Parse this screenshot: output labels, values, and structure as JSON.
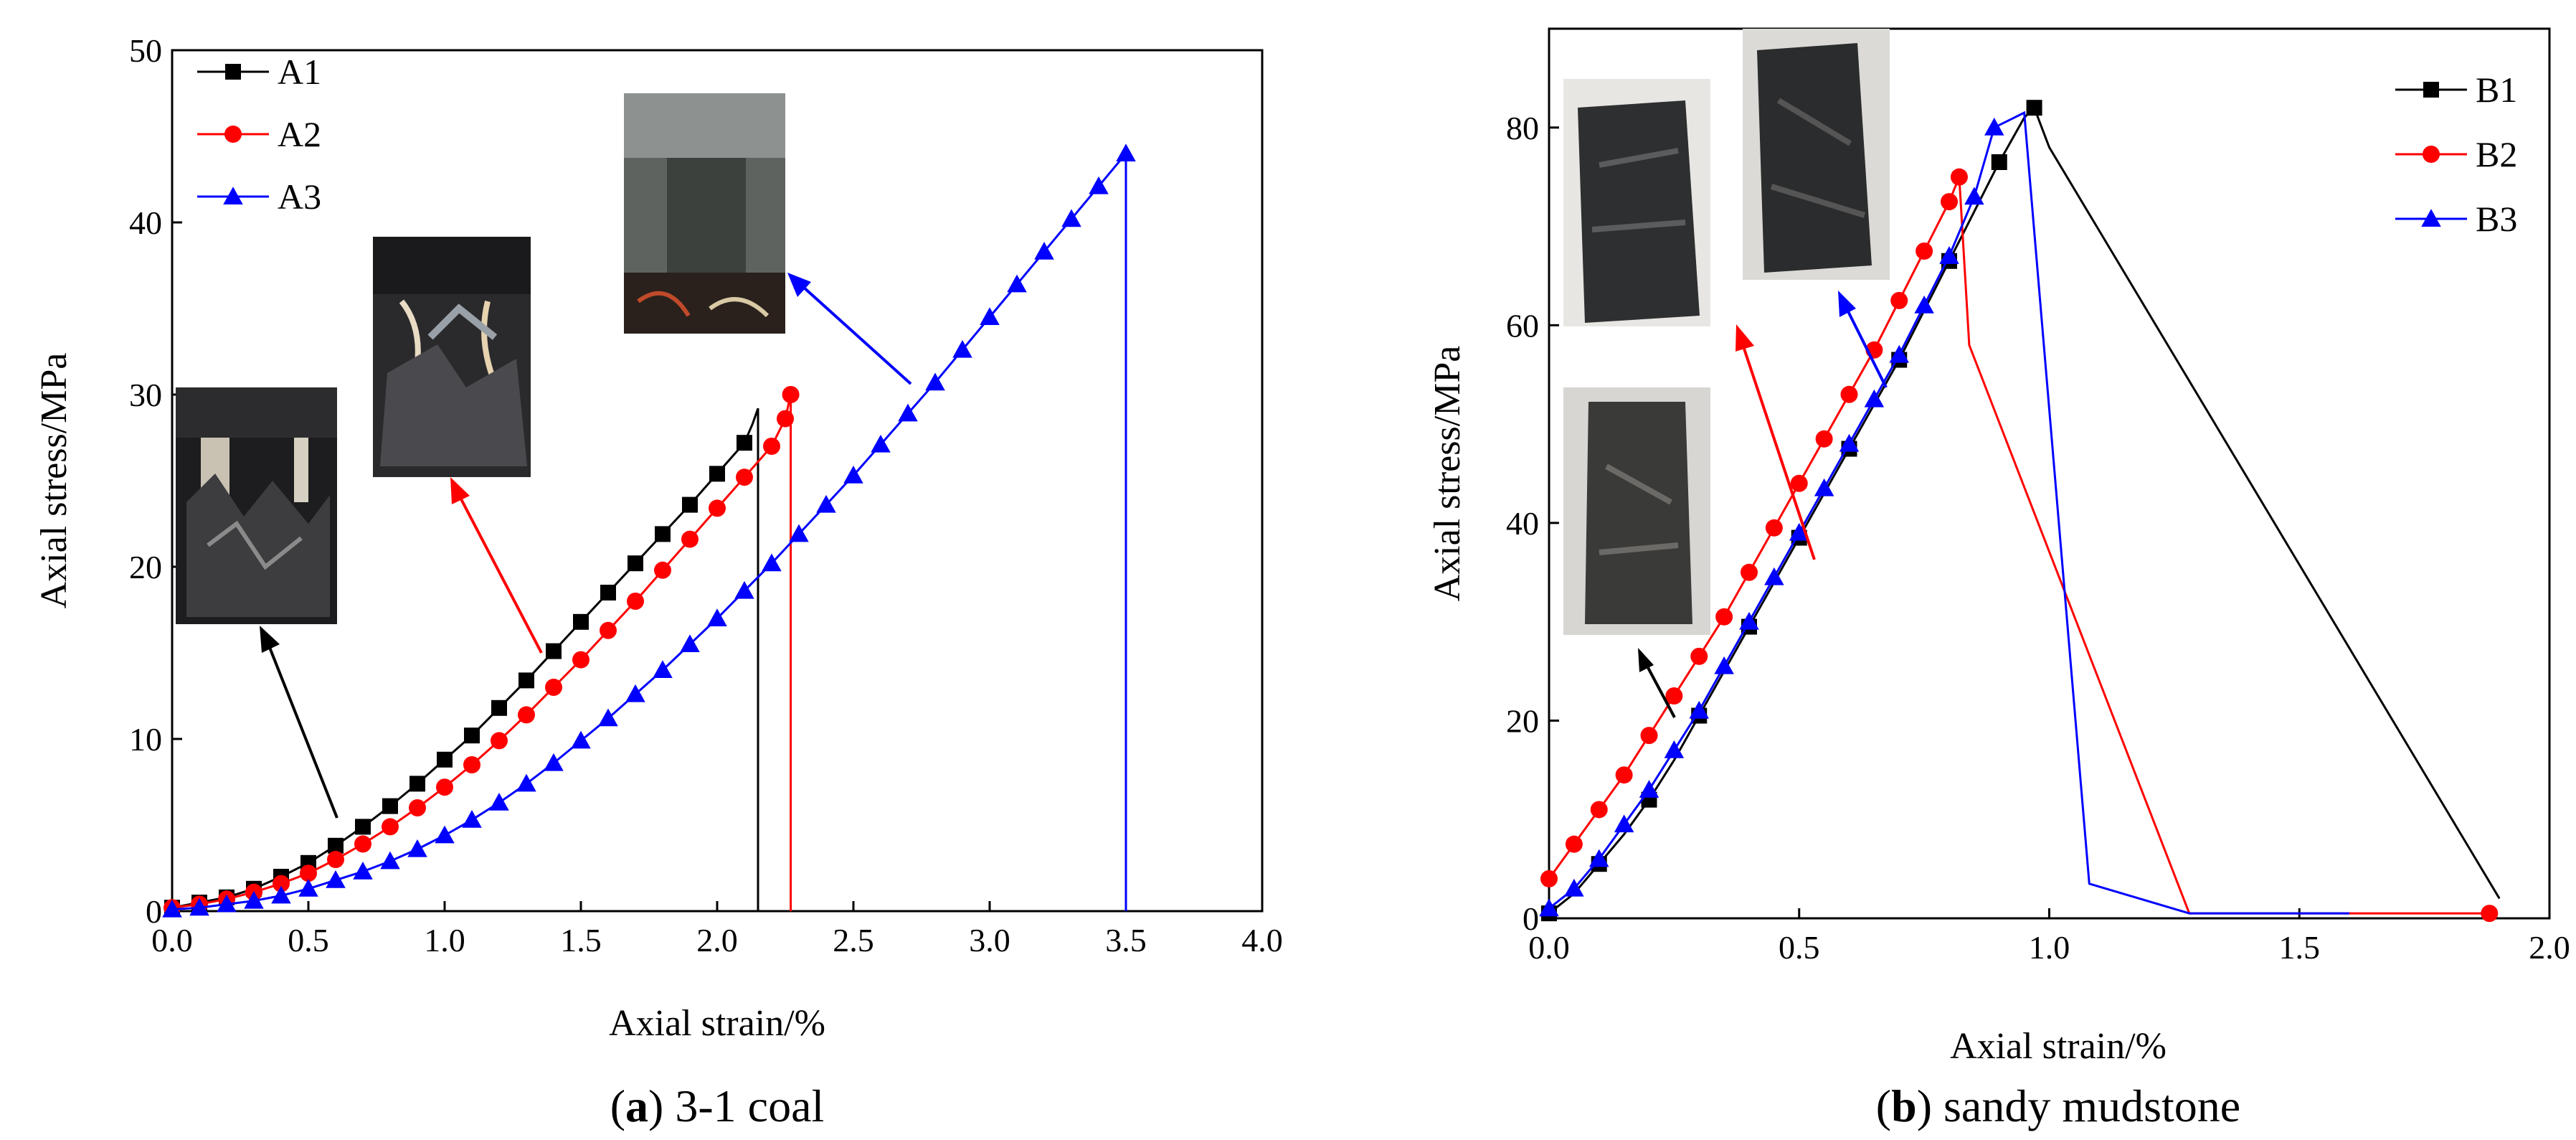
{
  "chart_data": [
    {
      "type": "line",
      "caption_letter": "a",
      "caption_text": ") 3-1 coal",
      "xlabel": "Axial strain/%",
      "ylabel": "Axial stress/MPa",
      "xlim": [
        0,
        4.0
      ],
      "ylim": [
        0,
        50
      ],
      "xticks": [
        "0.0",
        "0.5",
        "1.0",
        "1.5",
        "2.0",
        "2.5",
        "3.0",
        "3.5",
        "4.0"
      ],
      "yticks": [
        "0",
        "10",
        "20",
        "30",
        "40",
        "50"
      ],
      "legend_position": "top-left",
      "series": [
        {
          "name": "A1",
          "color": "#000000",
          "marker": "square",
          "x": [
            0,
            0.1,
            0.2,
            0.3,
            0.4,
            0.5,
            0.6,
            0.7,
            0.8,
            0.9,
            1.0,
            1.1,
            1.2,
            1.3,
            1.4,
            1.5,
            1.6,
            1.7,
            1.8,
            1.9,
            2.0,
            2.1,
            2.13,
            2.15,
            2.15
          ],
          "y": [
            0.2,
            0.5,
            0.8,
            1.3,
            2.0,
            2.8,
            3.8,
            4.9,
            6.1,
            7.4,
            8.8,
            10.2,
            11.8,
            13.4,
            15.1,
            16.8,
            18.5,
            20.2,
            21.9,
            23.6,
            25.4,
            27.2,
            28.3,
            29.2,
            0
          ],
          "marked": [
            0,
            1,
            2,
            3,
            4,
            5,
            6,
            7,
            8,
            9,
            10,
            11,
            12,
            13,
            14,
            15,
            16,
            17,
            18,
            19,
            20,
            21
          ]
        },
        {
          "name": "A2",
          "color": "#ff0000",
          "marker": "circle",
          "x": [
            0,
            0.1,
            0.2,
            0.3,
            0.4,
            0.5,
            0.6,
            0.7,
            0.8,
            0.9,
            1.0,
            1.1,
            1.2,
            1.3,
            1.4,
            1.5,
            1.6,
            1.7,
            1.8,
            1.9,
            2.0,
            2.1,
            2.2,
            2.25,
            2.27,
            2.27
          ],
          "y": [
            0.2,
            0.4,
            0.7,
            1.1,
            1.6,
            2.2,
            3.0,
            3.9,
            4.9,
            6.0,
            7.2,
            8.5,
            9.9,
            11.4,
            13.0,
            14.6,
            16.3,
            18.0,
            19.8,
            21.6,
            23.4,
            25.2,
            27.0,
            28.6,
            30.0,
            0
          ],
          "marked": [
            0,
            1,
            2,
            3,
            4,
            5,
            6,
            7,
            8,
            9,
            10,
            11,
            12,
            13,
            14,
            15,
            16,
            17,
            18,
            19,
            20,
            21,
            22,
            23,
            24
          ]
        },
        {
          "name": "A3",
          "color": "#0000ff",
          "marker": "triangle",
          "x": [
            0,
            0.1,
            0.2,
            0.3,
            0.4,
            0.5,
            0.6,
            0.7,
            0.8,
            0.9,
            1.0,
            1.1,
            1.2,
            1.3,
            1.4,
            1.5,
            1.6,
            1.7,
            1.8,
            1.9,
            2.0,
            2.1,
            2.2,
            2.3,
            2.4,
            2.5,
            2.6,
            2.7,
            2.8,
            2.9,
            3.0,
            3.1,
            3.2,
            3.3,
            3.4,
            3.5,
            3.5
          ],
          "y": [
            0.1,
            0.2,
            0.4,
            0.6,
            0.9,
            1.3,
            1.8,
            2.3,
            2.9,
            3.6,
            4.4,
            5.3,
            6.3,
            7.4,
            8.6,
            9.9,
            11.2,
            12.6,
            14.0,
            15.5,
            17.0,
            18.6,
            20.2,
            21.9,
            23.6,
            25.3,
            27.1,
            28.9,
            30.7,
            32.6,
            34.5,
            36.4,
            38.3,
            40.2,
            42.1,
            44.0,
            0
          ],
          "marked": [
            0,
            1,
            2,
            3,
            4,
            5,
            6,
            7,
            8,
            9,
            10,
            11,
            12,
            13,
            14,
            15,
            16,
            17,
            18,
            19,
            20,
            21,
            22,
            23,
            24,
            25,
            26,
            27,
            28,
            29,
            30,
            31,
            32,
            33,
            34,
            35
          ]
        }
      ]
    },
    {
      "type": "line",
      "caption_letter": "b",
      "caption_text": ") sandy mudstone",
      "xlabel": "Axial strain/%",
      "ylabel": "Axial stress/MPa",
      "xlim": [
        0,
        2.0
      ],
      "ylim": [
        0,
        90
      ],
      "xticks": [
        "0.0",
        "0.5",
        "1.0",
        "1.5",
        "2.0"
      ],
      "yticks": [
        "0",
        "20",
        "40",
        "60",
        "80"
      ],
      "legend_position": "top-right",
      "series": [
        {
          "name": "B1",
          "color": "#000000",
          "marker": "square",
          "x": [
            0,
            0.05,
            0.1,
            0.15,
            0.2,
            0.25,
            0.3,
            0.35,
            0.4,
            0.45,
            0.5,
            0.55,
            0.6,
            0.65,
            0.7,
            0.75,
            0.8,
            0.85,
            0.9,
            0.95,
            0.97,
            1.0,
            1.9
          ],
          "y": [
            0.5,
            2.5,
            5.5,
            8.5,
            12.0,
            16.0,
            20.5,
            25.0,
            29.5,
            34.0,
            38.5,
            43.0,
            47.5,
            52.0,
            56.5,
            61.5,
            66.5,
            71.5,
            76.5,
            81.0,
            82.0,
            78.0,
            2.0
          ],
          "marked": [
            0,
            2,
            4,
            6,
            8,
            10,
            12,
            14,
            16,
            18,
            20
          ]
        },
        {
          "name": "B2",
          "color": "#ff0000",
          "marker": "circle",
          "x": [
            0,
            0.05,
            0.1,
            0.15,
            0.2,
            0.25,
            0.3,
            0.35,
            0.4,
            0.45,
            0.5,
            0.55,
            0.6,
            0.65,
            0.7,
            0.75,
            0.8,
            0.82,
            0.84,
            1.28,
            1.88
          ],
          "y": [
            4.0,
            7.5,
            11.0,
            14.5,
            18.5,
            22.5,
            26.5,
            30.5,
            35.0,
            39.5,
            44.0,
            48.5,
            53.0,
            57.5,
            62.5,
            67.5,
            72.5,
            75.0,
            58.0,
            0.5,
            0.5
          ],
          "marked": [
            0,
            1,
            2,
            3,
            4,
            5,
            6,
            7,
            8,
            9,
            10,
            11,
            12,
            13,
            14,
            15,
            16,
            17,
            20
          ]
        },
        {
          "name": "B3",
          "color": "#0000ff",
          "marker": "triangle",
          "x": [
            0,
            0.05,
            0.1,
            0.15,
            0.2,
            0.25,
            0.3,
            0.35,
            0.4,
            0.45,
            0.5,
            0.55,
            0.6,
            0.65,
            0.7,
            0.75,
            0.8,
            0.85,
            0.89,
            0.95,
            1.08,
            1.28,
            1.6
          ],
          "y": [
            1.0,
            3.0,
            6.0,
            9.5,
            13.0,
            17.0,
            21.0,
            25.5,
            30.0,
            34.5,
            39.0,
            43.5,
            48.0,
            52.5,
            57.0,
            62.0,
            67.0,
            73.0,
            80.0,
            81.5,
            3.5,
            0.5,
            0.5
          ],
          "marked": [
            0,
            1,
            2,
            3,
            4,
            5,
            6,
            7,
            8,
            9,
            10,
            11,
            12,
            13,
            14,
            15,
            16,
            17,
            18
          ]
        }
      ]
    }
  ]
}
